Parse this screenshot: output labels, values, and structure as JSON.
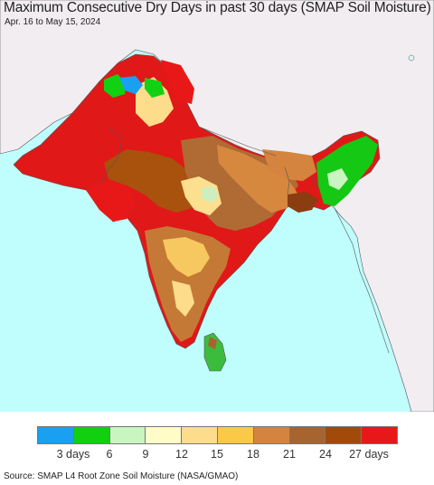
{
  "header": {
    "title": "Maximum Consecutive Dry Days in past 30 days (SMAP Soil Moisture)",
    "date_range": "Apr. 16 to May 15, 2024"
  },
  "legend": {
    "colors": [
      "#1aa0f0",
      "#10d010",
      "#c8f5c0",
      "#fffcc8",
      "#fddc8c",
      "#fcc848",
      "#d4843e",
      "#a8642e",
      "#a24a0a",
      "#e81818"
    ],
    "labels": [
      "3 days",
      "6",
      "9",
      "12",
      "15",
      "18",
      "21",
      "24",
      "27 days"
    ]
  },
  "footer": {
    "source": "SMAP L4 Root Zone Soil Moisture (NASA/GMAO)"
  },
  "map": {
    "region": "South Asia",
    "ocean_color": "#c0fefe",
    "land_outside_color": "#f0ecf0"
  }
}
